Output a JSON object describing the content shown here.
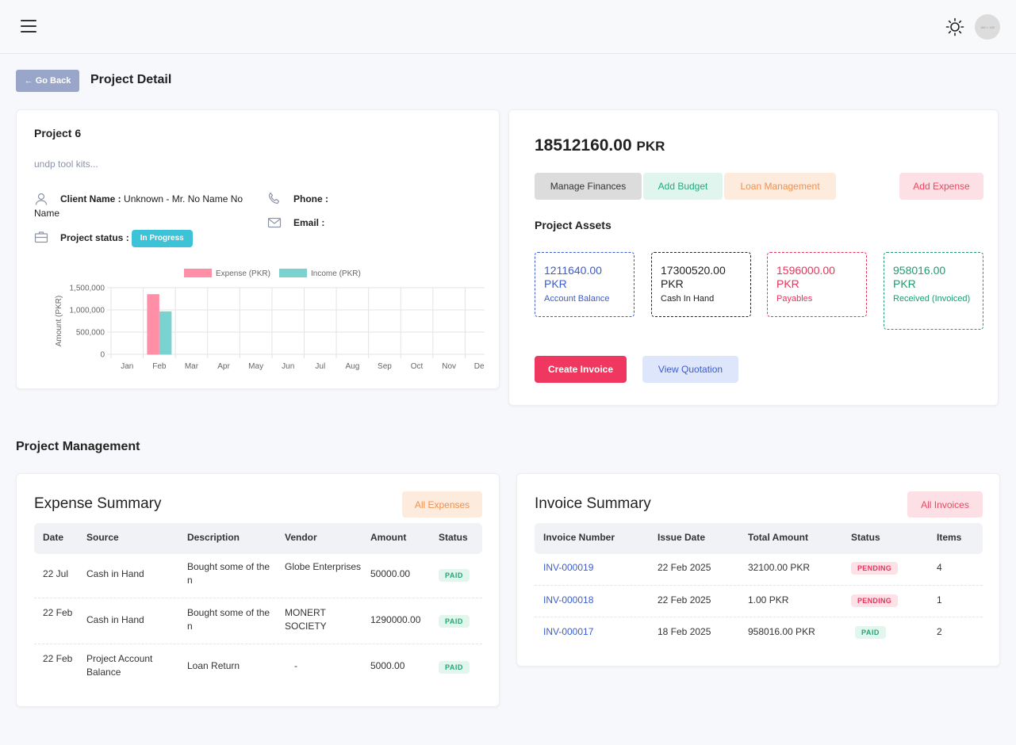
{
  "header": {
    "menu_icon": "hamburger-icon",
    "theme_icon": "sun-icon",
    "avatar_text": "180 × 180"
  },
  "page": {
    "back_label": "← Go Back",
    "title": "Project Detail"
  },
  "project": {
    "name": "Project 6",
    "description": "undp tool kits...",
    "client_label": "Client Name :",
    "client_value": "Unknown - Mr. No Name No Name",
    "status_label": "Project status :",
    "status_value": "In Progress",
    "phone_label": "Phone :",
    "email_label": "Email :"
  },
  "chart_data": {
    "type": "bar",
    "categories": [
      "Jan",
      "Feb",
      "Mar",
      "Apr",
      "May",
      "Jun",
      "Jul",
      "Aug",
      "Sep",
      "Oct",
      "Nov",
      "Dec"
    ],
    "series": [
      {
        "name": "Expense (PKR)",
        "color": "#ff8fa6",
        "values": [
          0,
          1345000,
          0,
          0,
          0,
          0,
          0,
          0,
          0,
          0,
          0,
          0
        ]
      },
      {
        "name": "Income (PKR)",
        "color": "#7ad3d0",
        "values": [
          0,
          958016,
          0,
          0,
          0,
          0,
          0,
          0,
          0,
          0,
          0,
          0
        ]
      }
    ],
    "ylabel": "Amount (PKR)",
    "ylim": [
      0,
      1500000
    ],
    "yticks": [
      "0",
      "500,000",
      "1,000,000",
      "1,500,000"
    ],
    "legend": "top",
    "grid": true
  },
  "finance": {
    "balance": "18512160.00",
    "currency": "PKR",
    "buttons": {
      "manage": "Manage Finances",
      "budget": "Add Budget",
      "loan": "Loan Management",
      "add_expense": "Add Expense",
      "create_invoice": "Create Invoice",
      "view_quotation": "View Quotation"
    },
    "assets_title": "Project Assets",
    "assets": [
      {
        "value": "1211640.00",
        "currency": "PKR",
        "label": "Account Balance",
        "color": "#3c5ccd"
      },
      {
        "value": "17300520.00",
        "currency": "PKR",
        "label": "Cash In Hand",
        "color": "#222222"
      },
      {
        "value": "1596000.00",
        "currency": "PKR",
        "label": "Payables",
        "color": "#e6355c"
      },
      {
        "value": "958016.00",
        "currency": "PKR",
        "label": "Received (Invoiced)",
        "color": "#219a6e"
      }
    ]
  },
  "management": {
    "title": "Project Management"
  },
  "expense": {
    "title": "Expense Summary",
    "all_label": "All Expenses",
    "columns": [
      "Date",
      "Source",
      "Description",
      "Vendor",
      "Amount",
      "Status"
    ],
    "rows": [
      {
        "date": "22 Jul",
        "source": "Cash in Hand",
        "description": "Bought some of the n",
        "vendor": "Globe Enterprises",
        "amount": "50000.00",
        "status": "PAID"
      },
      {
        "date": "22 Feb",
        "source": "Cash in Hand",
        "description": "Bought some of the n",
        "vendor": "MONERT SOCIETY",
        "amount": "1290000.00",
        "status": "PAID"
      },
      {
        "date": "22 Feb",
        "source": "Project Account Balance",
        "description": "Loan Return",
        "vendor": "-",
        "amount": "5000.00",
        "status": "PAID"
      }
    ]
  },
  "invoice": {
    "title": "Invoice Summary",
    "all_label": "All Invoices",
    "columns": [
      "Invoice Number",
      "Issue Date",
      "Total Amount",
      "Status",
      "Items"
    ],
    "rows": [
      {
        "number": "INV-000019",
        "issue_date": "22 Feb 2025",
        "total": "32100.00 PKR",
        "status": "PENDING",
        "items": "4"
      },
      {
        "number": "INV-000018",
        "issue_date": "22 Feb 2025",
        "total": "1.00 PKR",
        "status": "PENDING",
        "items": "1"
      },
      {
        "number": "INV-000017",
        "issue_date": "18 Feb 2025",
        "total": "958016.00 PKR",
        "status": "PAID",
        "items": "2"
      }
    ]
  }
}
